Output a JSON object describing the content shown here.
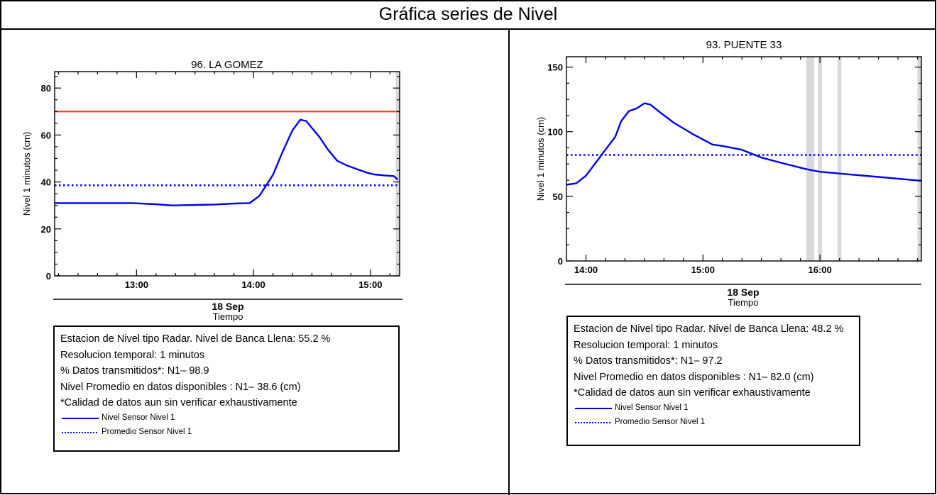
{
  "page_title": "Gráfica series de Nivel",
  "chart_data": [
    {
      "type": "line",
      "title": "96. LA GOMEZ",
      "ylabel": "Nivel 1 minutos (cm)",
      "date_label": "18 Sep",
      "xlabel": "Tiempo",
      "xlim": [
        "12:18",
        "15:15"
      ],
      "ylim": [
        0,
        87
      ],
      "yticks": [
        0,
        20,
        40,
        60,
        80
      ],
      "xticks": [
        "13:00",
        "14:00",
        "15:00"
      ],
      "threshold": {
        "value": 70,
        "color": "#ff3b1f"
      },
      "series": [
        {
          "name": "Nivel Sensor Nivel 1",
          "style": "solid",
          "color": "#0000ee",
          "x": [
            "12:18",
            "12:35",
            "12:58",
            "13:10",
            "13:18",
            "13:30",
            "13:40",
            "13:50",
            "13:58",
            "14:03",
            "14:10",
            "14:15",
            "14:20",
            "14:24",
            "14:27",
            "14:30",
            "14:34",
            "14:38",
            "14:43",
            "14:48",
            "14:53",
            "14:58",
            "15:02",
            "15:08",
            "15:12",
            "15:14"
          ],
          "y": [
            31,
            31,
            31,
            30.5,
            30,
            30.2,
            30.4,
            30.8,
            31,
            34,
            43,
            53,
            62,
            66.5,
            66,
            63,
            59,
            54,
            49,
            47,
            45.5,
            44,
            43.2,
            42.7,
            42.5,
            41
          ]
        },
        {
          "name": "Promedio Sensor Nivel 1",
          "style": "dotted",
          "color": "#0000ee",
          "x": [
            "12:18",
            "15:15"
          ],
          "y": [
            38.6,
            38.6
          ]
        }
      ],
      "shaded_bands": [
        [
          "15:13",
          "15:15"
        ]
      ],
      "info": [
        "Estacion de Nivel tipo Radar. Nivel de Banca Llena: 55.2 %",
        "Resolucion temporal: 1 minutos",
        "% Datos transmitidos*: N1– 98.9",
        "Nivel Promedio en datos disponibles : N1– 38.6 (cm)",
        "*Calidad de datos aun sin verificar exhaustivamente"
      ]
    },
    {
      "type": "line",
      "title": "93. PUENTE 33",
      "ylabel": "Nivel 1 minutos (cm)",
      "date_label": "18 Sep",
      "xlabel": "Tiempo",
      "xlim": [
        "13:50",
        "16:52"
      ],
      "ylim": [
        0,
        158
      ],
      "yticks": [
        0,
        50,
        100,
        150
      ],
      "xticks": [
        "14:00",
        "15:00",
        "16:00"
      ],
      "threshold": null,
      "series": [
        {
          "name": "Nivel Sensor Nivel 1",
          "style": "solid",
          "color": "#0000ee",
          "x": [
            "13:50",
            "13:55",
            "14:00",
            "14:05",
            "14:10",
            "14:15",
            "14:18",
            "14:22",
            "14:26",
            "14:30",
            "14:33",
            "14:38",
            "14:45",
            "14:55",
            "15:05",
            "15:10",
            "15:20",
            "15:30",
            "15:40",
            "15:53",
            "16:00",
            "16:15",
            "16:30",
            "16:45",
            "16:52"
          ],
          "y": [
            59,
            60,
            66,
            76,
            86,
            96,
            108,
            116,
            118,
            122,
            121,
            115,
            107,
            98,
            90,
            89,
            86,
            80,
            76,
            71,
            69,
            67,
            65,
            63,
            62
          ]
        },
        {
          "name": "Promedio Sensor Nivel 1",
          "style": "dotted",
          "color": "#0000ee",
          "x": [
            "13:50",
            "16:52"
          ],
          "y": [
            82,
            82
          ]
        }
      ],
      "shaded_bands": [
        [
          "15:53",
          "15:57"
        ],
        [
          "15:59",
          "16:01"
        ],
        [
          "16:09",
          "16:11"
        ],
        [
          "16:50",
          "16:52"
        ]
      ],
      "info": [
        "Estacion de Nivel tipo Radar. Nivel de Banca Llena: 48.2 %",
        "Resolucion temporal: 1 minutos",
        "% Datos transmitidos*: N1– 97.2",
        "Nivel Promedio en datos disponibles : N1– 82.0 (cm)",
        "*Calidad de datos aun sin verificar exhaustivamente"
      ]
    }
  ]
}
